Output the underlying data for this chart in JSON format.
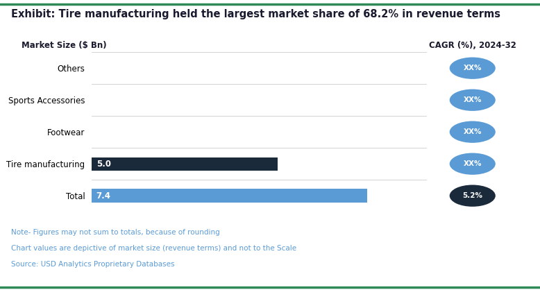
{
  "title": "Exhibit: Tire manufacturing held the largest market share of 68.2% in revenue terms",
  "ylabel_header": "Market Size ($ Bn)",
  "cagr_header": "CAGR (%), 2024-32",
  "categories": [
    "Others",
    "Sports Accessories",
    "Footwear",
    "Tire manufacturing",
    "Total"
  ],
  "values": [
    null,
    null,
    null,
    5.0,
    7.4
  ],
  "bar_labels": [
    "",
    "",
    "",
    "5.0",
    "7.4"
  ],
  "cagr_labels": [
    "XX%",
    "XX%",
    "XX%",
    "XX%",
    "5.2%"
  ],
  "bar_colors": [
    "#5b9bd5",
    "#5b9bd5",
    "#5b9bd5",
    "#1b2a3b",
    "#5b9bd5"
  ],
  "cagr_colors": [
    "#5b9bd5",
    "#5b9bd5",
    "#5b9bd5",
    "#5b9bd5",
    "#1b2a3b"
  ],
  "note_lines": [
    "Note- Figures may not sum to totals, because of rounding",
    "Chart values are depictive of market size (revenue terms) and not to the Scale",
    "Source: USD Analytics Proprietary Databases"
  ],
  "note_colors": [
    "#5b9bd5",
    "#5b9bd5",
    "#5b9bd5"
  ],
  "top_border_color": "#2e8b57",
  "bottom_border_color": "#2e8b57",
  "background_color": "#ffffff",
  "bar_height": 0.42,
  "title_fontsize": 10.5,
  "note_fontsize": 7.5,
  "xlim": [
    0,
    9
  ]
}
